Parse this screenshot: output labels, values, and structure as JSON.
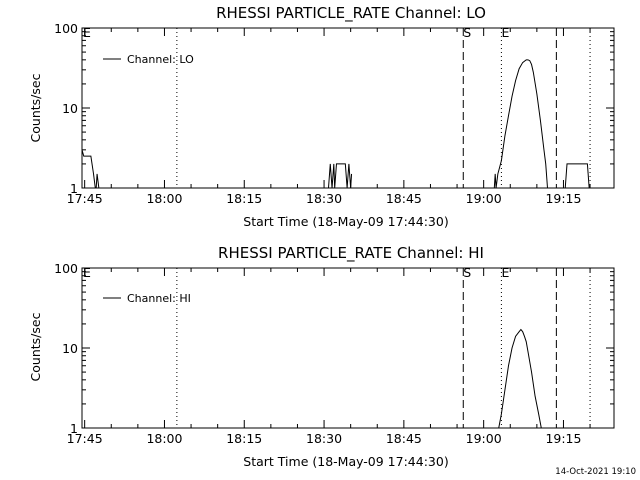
{
  "timestamp": "14-Oct-2021 19:10",
  "chart_data": [
    {
      "type": "line",
      "title": "RHESSI PARTICLE_RATE Channel: LO",
      "xlabel": "Start Time (18-May-09 17:44:30)",
      "ylabel": "Counts/sec",
      "yscale": "log",
      "xlim": [
        "17:44:30",
        "19:24:30"
      ],
      "ylim": [
        1,
        100
      ],
      "x_ticks": [
        "17:45",
        "18:00",
        "18:15",
        "18:30",
        "18:45",
        "19:00",
        "19:15"
      ],
      "y_ticks": [
        "1",
        "10",
        "100"
      ],
      "legend": {
        "label": "Channel: LO",
        "position": "top-left"
      },
      "markers": [
        {
          "time": "17:44:30",
          "label": "E",
          "style": "none"
        },
        {
          "time": "18:02:20",
          "style": "dotted"
        },
        {
          "time": "18:56:10",
          "label": "S",
          "style": "dashed"
        },
        {
          "time": "19:03:20",
          "label": "E",
          "style": "dotted"
        },
        {
          "time": "19:13:40",
          "style": "dashed"
        },
        {
          "time": "19:20:00",
          "style": "dotted"
        }
      ],
      "series": [
        {
          "segments": [
            {
              "x": [
                "17:44:30",
                "17:44:50",
                "17:45:30",
                "17:46:10",
                "17:46:40",
                "17:47:00",
                "17:47:10",
                "17:47:20",
                "17:47:40",
                "17:48:10"
              ],
              "y": [
                3,
                2.5,
                2.5,
                2.5,
                1.5,
                1,
                1,
                1.5,
                1,
                1
              ]
            },
            {
              "x": [
                "18:30:50",
                "18:31:10",
                "18:31:30",
                "18:31:50",
                "18:32:00",
                "18:32:20",
                "18:32:40",
                "18:34:00",
                "18:34:20",
                "18:34:40",
                "18:35:00",
                "18:35:10"
              ],
              "y": [
                1,
                2,
                1,
                2,
                1,
                2,
                2,
                2,
                1,
                2,
                1,
                1.5
              ]
            },
            {
              "x": [
                "19:02:00",
                "19:02:10",
                "19:02:20",
                "19:02:40",
                "19:03:20",
                "19:04:00",
                "19:04:40",
                "19:05:20",
                "19:06:00",
                "19:06:40",
                "19:07:20",
                "19:08:00",
                "19:08:20",
                "19:08:40",
                "19:09:00",
                "19:09:20",
                "19:10:00",
                "19:10:40",
                "19:11:20",
                "19:11:40",
                "19:12:00"
              ],
              "y": [
                1,
                1.5,
                1,
                1.5,
                2.2,
                4.5,
                8,
                14,
                22,
                31,
                37,
                40,
                40,
                39,
                35,
                28,
                15,
                7,
                3,
                2,
                1
              ]
            },
            {
              "x": [
                "19:15:20",
                "19:15:40",
                "19:19:30",
                "19:19:50"
              ],
              "y": [
                1,
                2,
                2,
                1
              ]
            }
          ]
        }
      ]
    },
    {
      "type": "line",
      "title": "RHESSI PARTICLE_RATE Channel: HI",
      "xlabel": "Start Time (18-May-09 17:44:30)",
      "ylabel": "Counts/sec",
      "yscale": "log",
      "xlim": [
        "17:44:30",
        "19:24:30"
      ],
      "ylim": [
        1,
        100
      ],
      "x_ticks": [
        "17:45",
        "18:00",
        "18:15",
        "18:30",
        "18:45",
        "19:00",
        "19:15"
      ],
      "y_ticks": [
        "1",
        "10",
        "100"
      ],
      "legend": {
        "label": "Channel: HI",
        "position": "top-left"
      },
      "markers": [
        {
          "time": "17:44:30",
          "label": "E",
          "style": "none"
        },
        {
          "time": "18:02:20",
          "style": "dotted"
        },
        {
          "time": "18:56:10",
          "label": "S",
          "style": "dashed"
        },
        {
          "time": "19:03:20",
          "label": "E",
          "style": "dotted"
        },
        {
          "time": "19:13:40",
          "style": "dashed"
        },
        {
          "time": "19:20:00",
          "style": "dotted"
        }
      ],
      "series": [
        {
          "segments": [
            {
              "x": [
                "19:02:50",
                "19:03:20",
                "19:04:00",
                "19:04:40",
                "19:05:20",
                "19:06:00",
                "19:06:40",
                "19:07:00",
                "19:07:20",
                "19:07:40",
                "19:08:00",
                "19:08:20",
                "19:09:00",
                "19:09:40",
                "19:10:20",
                "19:10:50"
              ],
              "y": [
                1,
                1.5,
                3,
                6,
                10,
                14,
                16,
                17,
                16,
                14,
                12,
                9,
                5,
                2.5,
                1.5,
                1
              ]
            }
          ]
        }
      ]
    }
  ]
}
